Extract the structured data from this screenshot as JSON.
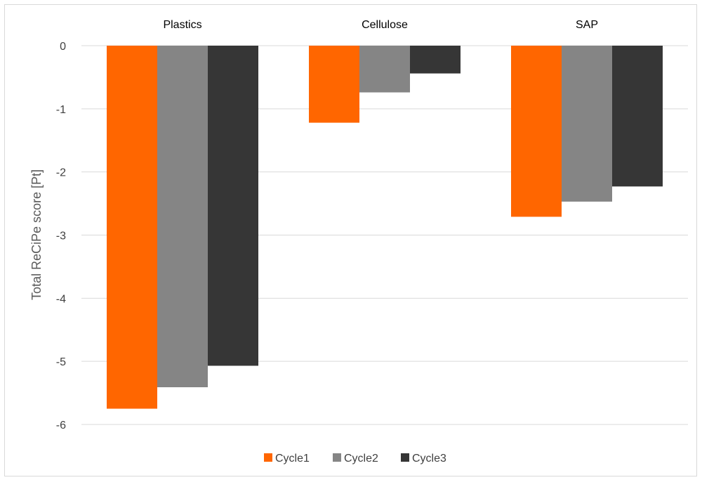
{
  "chart_data": {
    "type": "bar",
    "categories": [
      "Plastics",
      "Cellulose",
      "SAP"
    ],
    "series": [
      {
        "name": "Cycle1",
        "color": "#ff6600",
        "values": [
          -5.75,
          -1.22,
          -2.71
        ]
      },
      {
        "name": "Cycle2",
        "color": "#858585",
        "values": [
          -5.41,
          -0.74,
          -2.47
        ]
      },
      {
        "name": "Cycle3",
        "color": "#363636",
        "values": [
          -5.07,
          -0.44,
          -2.23
        ]
      }
    ],
    "title": "",
    "xlabel": "",
    "ylabel": "Total ReCiPe score [Pt]",
    "ylim": [
      -6,
      0
    ],
    "yticks": [
      0,
      -1,
      -2,
      -3,
      -4,
      -5,
      -6
    ],
    "grid": true,
    "category_axis_position": "top",
    "legend_position": "bottom-center"
  }
}
